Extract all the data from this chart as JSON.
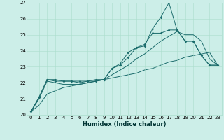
{
  "title": "",
  "xlabel": "Humidex (Indice chaleur)",
  "background_color": "#cceee8",
  "line_color": "#1a6b6b",
  "grid_color": "#aaddcc",
  "xlim": [
    -0.5,
    23.5
  ],
  "ylim": [
    20,
    27
  ],
  "x_ticks": [
    0,
    1,
    2,
    3,
    4,
    5,
    6,
    7,
    8,
    9,
    10,
    11,
    12,
    13,
    14,
    15,
    16,
    17,
    18,
    19,
    20,
    21,
    22,
    23
  ],
  "y_ticks": [
    20,
    21,
    22,
    23,
    24,
    25,
    26,
    27
  ],
  "line1_x": [
    0,
    1,
    2,
    3,
    4,
    5,
    6,
    7,
    8,
    9,
    10,
    11,
    12,
    13,
    14,
    15,
    16,
    17,
    18,
    19,
    20,
    21,
    22,
    23
  ],
  "line1_y": [
    20.2,
    21.1,
    22.2,
    22.2,
    22.1,
    22.1,
    22.1,
    22.1,
    22.2,
    22.2,
    22.9,
    23.1,
    23.6,
    24.2,
    24.3,
    25.4,
    26.1,
    27.0,
    25.3,
    24.6,
    24.6,
    23.7,
    23.1,
    23.1
  ],
  "line1_markers": true,
  "line2_x": [
    0,
    1,
    2,
    3,
    4,
    5,
    6,
    7,
    8,
    9,
    10,
    11,
    12,
    13,
    14,
    15,
    16,
    17,
    18,
    19,
    20,
    21,
    22,
    23
  ],
  "line2_y": [
    20.2,
    21.1,
    22.2,
    22.1,
    22.1,
    22.1,
    22.0,
    22.1,
    22.1,
    22.2,
    22.9,
    23.2,
    23.9,
    24.2,
    24.4,
    25.1,
    25.1,
    25.3,
    25.3,
    24.6,
    24.6,
    23.7,
    23.1,
    23.1
  ],
  "line2_markers": true,
  "line3_x": [
    0,
    1,
    2,
    3,
    4,
    5,
    6,
    7,
    8,
    9,
    10,
    11,
    12,
    13,
    14,
    15,
    16,
    17,
    18,
    19,
    20,
    21,
    22,
    23
  ],
  "line3_y": [
    20.2,
    21.0,
    22.1,
    22.0,
    21.9,
    21.9,
    21.9,
    22.0,
    22.1,
    22.2,
    22.5,
    22.8,
    23.1,
    23.5,
    23.8,
    24.2,
    24.6,
    24.9,
    25.2,
    25.0,
    25.0,
    24.6,
    23.5,
    23.1
  ],
  "line3_markers": false,
  "line4_x": [
    0,
    1,
    2,
    3,
    4,
    5,
    6,
    7,
    8,
    9,
    10,
    11,
    12,
    13,
    14,
    15,
    16,
    17,
    18,
    19,
    20,
    21,
    22,
    23
  ],
  "line4_y": [
    20.2,
    20.6,
    21.3,
    21.5,
    21.7,
    21.8,
    21.9,
    22.0,
    22.1,
    22.2,
    22.3,
    22.4,
    22.5,
    22.6,
    22.8,
    22.9,
    23.1,
    23.3,
    23.4,
    23.6,
    23.7,
    23.8,
    23.9,
    23.1
  ],
  "line4_markers": false,
  "tick_fontsize": 5,
  "xlabel_fontsize": 6
}
